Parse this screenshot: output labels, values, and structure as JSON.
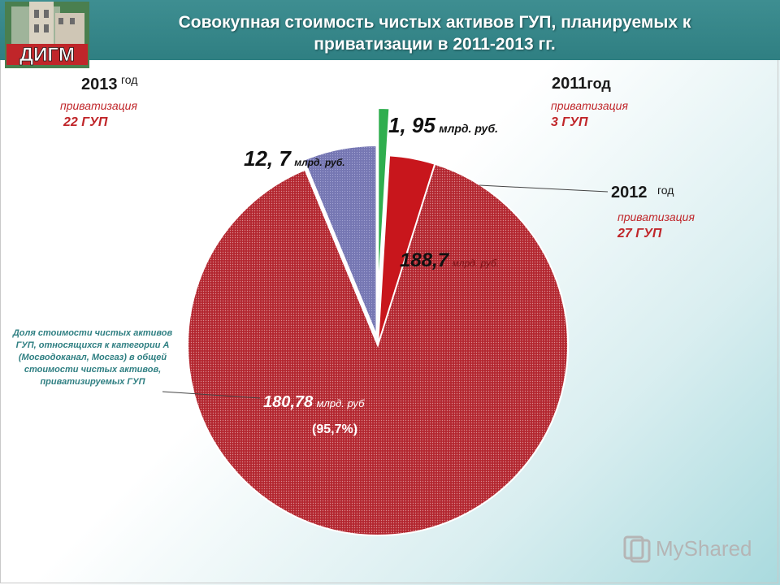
{
  "header": {
    "title": "Совокупная стоимость чистых активов ГУП, планируемых к приватизации в 2011-2013 гг.",
    "title_line1": "Совокупная стоимость чистых активов ГУП, планируемых к",
    "title_line2": "приватизации в 2011-2013 гг."
  },
  "logo": {
    "text": "ДИГМ"
  },
  "labels": {
    "y2013": {
      "year": "2013",
      "god": "год",
      "priv": "приватизация",
      "gup": "22 ГУП"
    },
    "y2011": {
      "year": "2011",
      "god": "год",
      "priv": "приватизация",
      "gup": "3 ГУП"
    },
    "y2012": {
      "year": "2012",
      "god": "год",
      "priv": "приватизация",
      "gup": "27 ГУП"
    }
  },
  "slice_labels": {
    "s2011": {
      "value": "1, 95",
      "unit": "млрд. руб."
    },
    "s2013": {
      "value": "12, 7",
      "unit": "млрд. руб."
    },
    "s2012": {
      "value": "188,7",
      "unit": "млрд. руб."
    },
    "catA": {
      "value": "180,78",
      "unit": "млрд. руб",
      "pct": "(95,7%)"
    }
  },
  "category_note": "Доля стоимости чистых активов ГУП, относящихся к категории А (Мосводоканал, Мосгаз) в общей стоимости чистых активов, приватизируемых ГУП",
  "watermark": "MyShared",
  "chart_data": {
    "type": "pie",
    "title": "Совокупная стоимость чистых активов ГУП, планируемых к приватизации в 2011-2013 гг.",
    "slices": [
      {
        "label": "2011 год",
        "value": 1.95,
        "unit": "млрд. руб.",
        "color": "#2fae4e",
        "exploded": true
      },
      {
        "label": "2012 год",
        "value": 188.7,
        "unit": "млрд. руб.",
        "color": "#c8161c",
        "exploded": true,
        "sub": {
          "label": "180,78 млрд. руб",
          "value": 180.78,
          "percent": 95.7,
          "color": "#b3262f"
        }
      },
      {
        "label": "2013 год",
        "value": 12.7,
        "unit": "млрд. руб.",
        "color": "#7b7cb6",
        "exploded": true
      }
    ]
  }
}
